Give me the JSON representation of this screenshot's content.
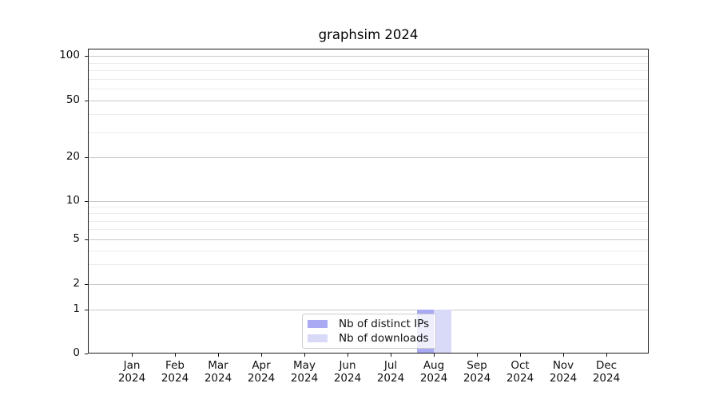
{
  "title": "graphsim 2024",
  "chart_data": {
    "type": "bar",
    "title": "graphsim 2024",
    "categories": [
      "Jan 2024",
      "Feb 2024",
      "Mar 2024",
      "Apr 2024",
      "May 2024",
      "Jun 2024",
      "Jul 2024",
      "Aug 2024",
      "Sep 2024",
      "Oct 2024",
      "Nov 2024",
      "Dec 2024"
    ],
    "series": [
      {
        "name": "Nb of distinct IPs",
        "color": "#a9a9f4",
        "values": [
          0,
          0,
          0,
          0,
          0,
          0,
          0,
          1,
          0,
          0,
          0,
          0
        ]
      },
      {
        "name": "Nb of downloads",
        "color": "#d9d9f8",
        "values": [
          0,
          0,
          0,
          0,
          0,
          0,
          0,
          1,
          0,
          0,
          0,
          0
        ]
      }
    ],
    "xlabel": "",
    "ylabel": "",
    "ylim": [
      0,
      100
    ],
    "y_scale": "log-like",
    "y_major_ticks": [
      100,
      50,
      20,
      10,
      5,
      2,
      1,
      0
    ],
    "y_minor_ticks": [
      90,
      80,
      70,
      60,
      40,
      30,
      9,
      8,
      7,
      6,
      4,
      3
    ],
    "grid": true,
    "legend_position": "lower-center"
  }
}
